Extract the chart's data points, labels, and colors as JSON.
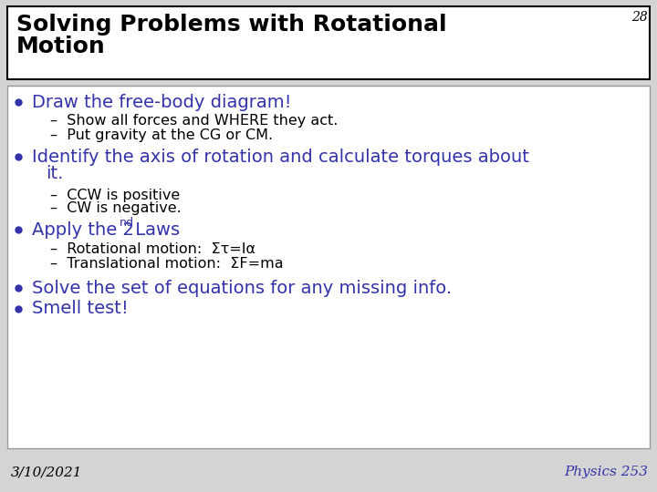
{
  "slide_number": "28",
  "title_line1": "Solving Problems with Rotational",
  "title_line2": "Motion",
  "title_color": "#000000",
  "title_bg": "#ffffff",
  "title_border": "#000000",
  "body_bg": "#ffffff",
  "body_border": "#999999",
  "blue_color": "#3333aa",
  "black_color": "#000000",
  "date": "3/10/2021",
  "course": "Physics 253",
  "bg_color": "#d4d4d4",
  "slide_num_color": "#000000",
  "title_fontsize": 18,
  "body_main_fontsize": 14,
  "body_sub_fontsize": 11.5,
  "footer_fontsize": 11
}
